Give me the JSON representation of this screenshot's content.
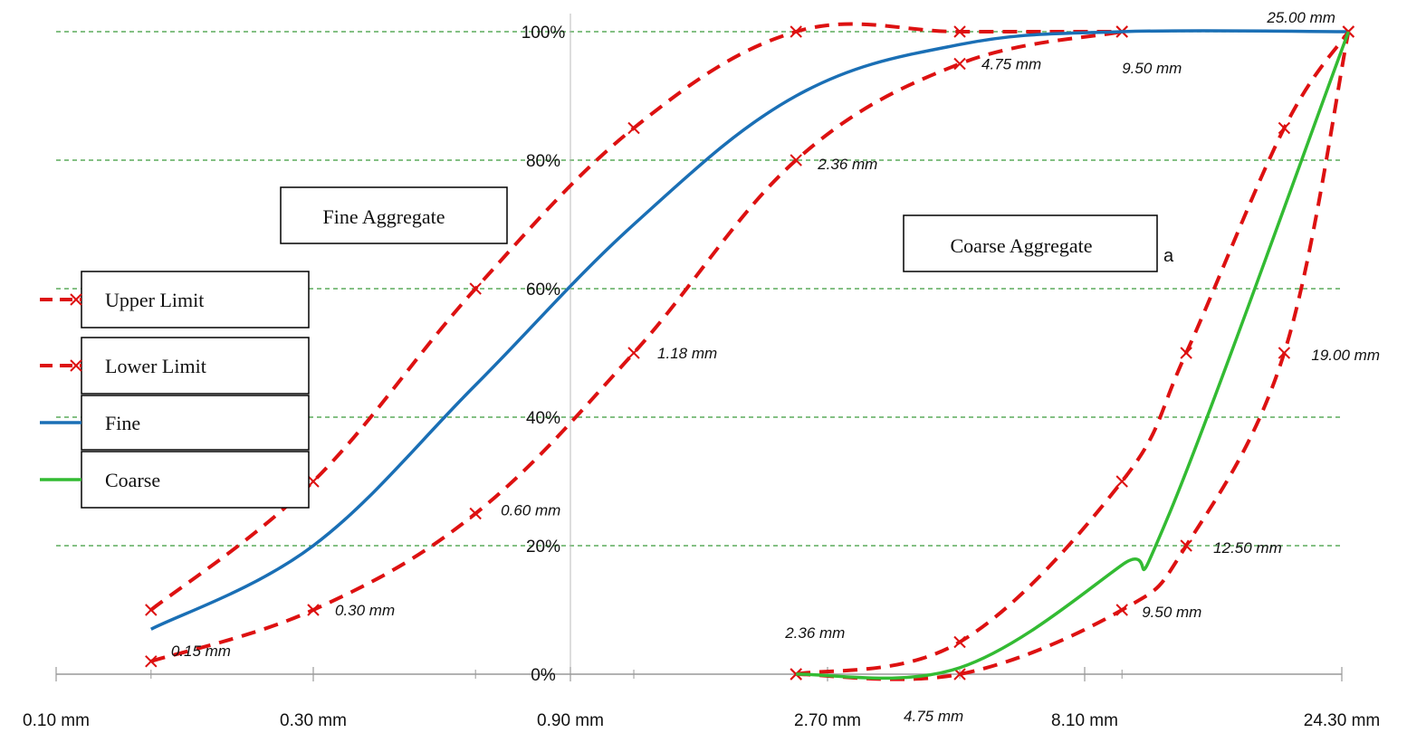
{
  "chart_data": {
    "type": "line",
    "x_tick_labels": [
      "0.10 mm",
      "0.30 mm",
      "0.90 mm",
      "2.70 mm",
      "8.10 mm",
      "24.30 mm"
    ],
    "x_ticks": [
      0.1,
      0.3,
      0.9,
      2.7,
      8.1,
      24.3
    ],
    "x_scale": "log",
    "xlim": [
      0.1,
      24.3
    ],
    "y_tick_labels": [
      "0%",
      "20%",
      "40%",
      "60%",
      "80%",
      "100%"
    ],
    "y_ticks": [
      0,
      20,
      40,
      60,
      80,
      100
    ],
    "ylim": [
      0,
      100
    ],
    "gridlines": "horizontal-dashed",
    "text_boxes": [
      "Fine Aggregate",
      "Coarse Aggregate"
    ],
    "stray_text": "a",
    "legend": {
      "placement": "left"
    },
    "series": [
      {
        "name": "Upper Limit",
        "color": "#dd1111",
        "style": "dashed",
        "marker": "x",
        "x": [
          0.15,
          0.3,
          0.6,
          1.18,
          2.36,
          4.75,
          9.5
        ],
        "y": [
          10,
          30,
          60,
          85,
          100,
          100,
          100
        ]
      },
      {
        "name": "Lower Limit",
        "color": "#dd1111",
        "style": "dashed",
        "marker": "x",
        "x": [
          0.15,
          0.3,
          0.6,
          1.18,
          2.36,
          4.75,
          9.5
        ],
        "y": [
          2,
          10,
          25,
          50,
          80,
          95,
          100
        ]
      },
      {
        "name": "Fine",
        "color": "#1a6fb5",
        "style": "solid",
        "marker": "none",
        "x": [
          0.15,
          0.3,
          0.6,
          1.18,
          2.36,
          4.75,
          9.5,
          25
        ],
        "y": [
          7,
          20,
          45,
          70,
          90,
          98,
          100,
          100
        ]
      },
      {
        "name": "Upper Limit (coarse)",
        "color": "#dd1111",
        "style": "dashed",
        "marker": "x",
        "x": [
          2.36,
          4.75,
          9.5,
          12.5,
          19.0,
          25.0
        ],
        "y": [
          0,
          5,
          30,
          50,
          85,
          100
        ]
      },
      {
        "name": "Lower Limit (coarse)",
        "color": "#dd1111",
        "style": "dashed",
        "marker": "x",
        "x": [
          2.36,
          4.75,
          9.5,
          12.5,
          19.0,
          25.0
        ],
        "y": [
          0,
          0,
          10,
          20,
          50,
          100
        ]
      },
      {
        "name": "Coarse",
        "color": "#33bb33",
        "style": "solid",
        "marker": "none",
        "x": [
          2.36,
          4.75,
          9.5,
          11.5,
          25.0
        ],
        "y": [
          0,
          1,
          17,
          24,
          100
        ]
      }
    ],
    "point_labels": [
      {
        "text": "0.15 mm",
        "x": 0.15,
        "y": 2
      },
      {
        "text": "0.30 mm",
        "x": 0.3,
        "y": 10
      },
      {
        "text": "0.60 mm",
        "x": 0.6,
        "y": 25
      },
      {
        "text": "1.18 mm",
        "x": 1.18,
        "y": 50
      },
      {
        "text": "2.36 mm",
        "x": 2.36,
        "y": 80
      },
      {
        "text": "4.75 mm",
        "x": 4.75,
        "y": 95
      },
      {
        "text": "9.50 mm",
        "x": 9.5,
        "y": 100
      },
      {
        "text": "25.00 mm",
        "x": 25.0,
        "y": 100
      },
      {
        "text": "2.36 mm",
        "x": 2.36,
        "y": 0
      },
      {
        "text": "4.75 mm",
        "x": 4.75,
        "y": 0
      },
      {
        "text": "9.50 mm",
        "x": 9.5,
        "y": 10
      },
      {
        "text": "12.50 mm",
        "x": 12.5,
        "y": 20
      },
      {
        "text": "19.00 mm",
        "x": 19.0,
        "y": 50
      }
    ]
  }
}
